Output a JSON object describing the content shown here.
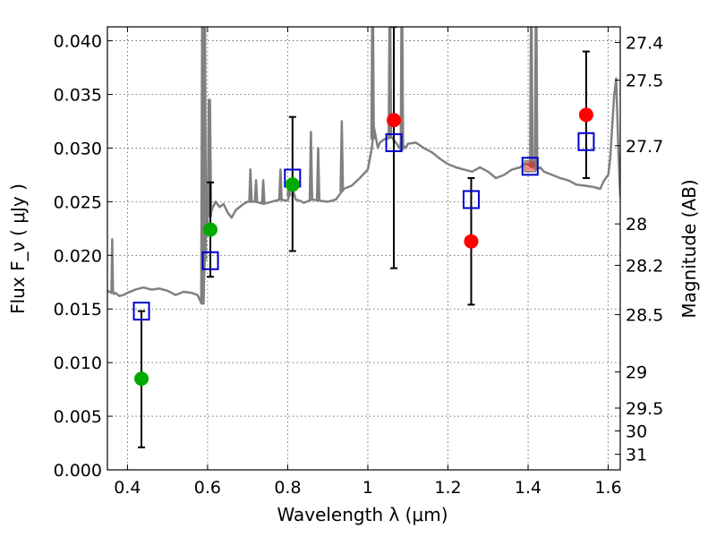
{
  "chart_data": {
    "type": "scatter",
    "xlabel": "Wavelength  λ (μm)",
    "ylabel": "Flux  F_ν  ( μJy )",
    "y2label": "Magnitude (AB)",
    "xlim": [
      0.35,
      1.63
    ],
    "ylim": [
      0.0,
      0.0413
    ],
    "grid": true,
    "x_ticks": [
      0.4,
      0.6,
      0.8,
      1.0,
      1.2,
      1.4,
      1.6
    ],
    "x_tick_labels": [
      "0.4",
      "0.6",
      "0.8",
      "1",
      "1.2",
      "1.4",
      "1.6"
    ],
    "y_ticks": [
      0.0,
      0.005,
      0.01,
      0.015,
      0.02,
      0.025,
      0.03,
      0.035,
      0.04
    ],
    "y_tick_labels": [
      "0.000",
      "0.005",
      "0.010",
      "0.015",
      "0.020",
      "0.025",
      "0.030",
      "0.035",
      "0.040"
    ],
    "y2_ticks": [
      {
        "label": "27.4",
        "flux": 0.03984
      },
      {
        "label": "27.5",
        "flux": 0.03633
      },
      {
        "label": "27.7",
        "flux": 0.03022
      },
      {
        "label": "28",
        "flux": 0.02293
      },
      {
        "label": "28.2",
        "flux": 0.01907
      },
      {
        "label": "28.5",
        "flux": 0.01447
      },
      {
        "label": "29",
        "flux": 0.00913
      },
      {
        "label": "29.5",
        "flux": 0.00576
      },
      {
        "label": "30",
        "flux": 0.00363
      },
      {
        "label": "31",
        "flux": 0.00145
      }
    ],
    "colors": {
      "spectrum": "#808080",
      "model_marker": "#0000cc",
      "model_inner": "#808080",
      "obs_red": "#ff0000",
      "obs_green": "#00aa00",
      "errorbar": "#000000",
      "grid": "#555555"
    },
    "spectrum": {
      "x": [
        0.35,
        0.36,
        0.362,
        0.364,
        0.366,
        0.37,
        0.38,
        0.39,
        0.4,
        0.42,
        0.44,
        0.46,
        0.48,
        0.5,
        0.52,
        0.54,
        0.56,
        0.575,
        0.585,
        0.59,
        0.592,
        0.596,
        0.6,
        0.603,
        0.606,
        0.609,
        0.612,
        0.62,
        0.63,
        0.64,
        0.65,
        0.66,
        0.67,
        0.68,
        0.69,
        0.7,
        0.72,
        0.74,
        0.76,
        0.78,
        0.8,
        0.81,
        0.82,
        0.83,
        0.84,
        0.86,
        0.88,
        0.9,
        0.92,
        0.94,
        0.96,
        0.98,
        1.0,
        1.01,
        1.015,
        1.02,
        1.025,
        1.03,
        1.04,
        1.05,
        1.06,
        1.07,
        1.08,
        1.085,
        1.09,
        1.095,
        1.1,
        1.12,
        1.14,
        1.16,
        1.18,
        1.2,
        1.22,
        1.24,
        1.26,
        1.28,
        1.3,
        1.32,
        1.34,
        1.36,
        1.38,
        1.39,
        1.4,
        1.41,
        1.415,
        1.42,
        1.43,
        1.44,
        1.46,
        1.48,
        1.5,
        1.52,
        1.54,
        1.56,
        1.58,
        1.59,
        1.6,
        1.605,
        1.61,
        1.615,
        1.62,
        1.625,
        1.63
      ],
      "y": [
        0.0167,
        0.0165,
        0.0215,
        0.0165,
        0.0164,
        0.0165,
        0.0162,
        0.0163,
        0.0165,
        0.0168,
        0.017,
        0.0168,
        0.0169,
        0.0167,
        0.0163,
        0.0166,
        0.0165,
        0.0163,
        0.0155,
        0.0155,
        0.0185,
        0.0225,
        0.0226,
        0.0345,
        0.0236,
        0.024,
        0.0244,
        0.025,
        0.0245,
        0.0248,
        0.024,
        0.0235,
        0.0242,
        0.0245,
        0.0248,
        0.025,
        0.025,
        0.0248,
        0.025,
        0.0252,
        0.0251,
        0.0265,
        0.0252,
        0.0251,
        0.0249,
        0.0252,
        0.0251,
        0.025,
        0.0252,
        0.0262,
        0.0265,
        0.0272,
        0.028,
        0.03,
        0.032,
        0.031,
        0.03,
        0.0305,
        0.0308,
        0.0309,
        0.031,
        0.0305,
        0.03,
        0.0298,
        0.0302,
        0.03,
        0.0304,
        0.0305,
        0.03,
        0.0296,
        0.029,
        0.0285,
        0.0282,
        0.028,
        0.0278,
        0.0282,
        0.0278,
        0.0272,
        0.0275,
        0.028,
        0.0282,
        0.0285,
        0.0285,
        0.0282,
        0.0285,
        0.028,
        0.0282,
        0.0278,
        0.0275,
        0.0272,
        0.027,
        0.0266,
        0.0265,
        0.0264,
        0.0262,
        0.027,
        0.0275,
        0.029,
        0.032,
        0.035,
        0.0365,
        0.03,
        0.0255
      ],
      "emission_lines": [
        {
          "x": 0.587,
          "peak": 0.048
        },
        {
          "x": 0.593,
          "peak": 0.048
        },
        {
          "x": 0.606,
          "peak": 0.0345
        },
        {
          "x": 0.707,
          "peak": 0.028
        },
        {
          "x": 0.721,
          "peak": 0.027
        },
        {
          "x": 0.739,
          "peak": 0.027
        },
        {
          "x": 0.782,
          "peak": 0.028
        },
        {
          "x": 0.803,
          "peak": 0.027
        },
        {
          "x": 0.858,
          "peak": 0.0315
        },
        {
          "x": 0.876,
          "peak": 0.03
        },
        {
          "x": 0.935,
          "peak": 0.0325
        },
        {
          "x": 1.012,
          "peak": 0.048
        },
        {
          "x": 1.055,
          "peak": 0.048
        },
        {
          "x": 1.085,
          "peak": 0.048
        },
        {
          "x": 1.408,
          "peak": 0.048
        },
        {
          "x": 1.42,
          "peak": 0.048
        }
      ]
    },
    "model_points": [
      {
        "x": 0.435,
        "y": 0.0148
      },
      {
        "x": 0.607,
        "y": 0.0195
      },
      {
        "x": 0.812,
        "y": 0.0272
      },
      {
        "x": 1.065,
        "y": 0.0305
      },
      {
        "x": 1.258,
        "y": 0.0252
      },
      {
        "x": 1.405,
        "y": 0.0283
      },
      {
        "x": 1.545,
        "y": 0.0306
      }
    ],
    "observed_points": [
      {
        "x": 0.435,
        "y": 0.0085,
        "err_low": 0.0021,
        "err_high": 0.0148,
        "color": "green"
      },
      {
        "x": 0.607,
        "y": 0.0224,
        "err_low": 0.018,
        "err_high": 0.0268,
        "color": "green"
      },
      {
        "x": 0.812,
        "y": 0.0266,
        "err_low": 0.0204,
        "err_high": 0.0329,
        "color": "green"
      },
      {
        "x": 1.065,
        "y": 0.0326,
        "err_low": 0.0188,
        "err_high": 0.0413,
        "color": "red"
      },
      {
        "x": 1.258,
        "y": 0.0213,
        "err_low": 0.0154,
        "err_high": 0.0272,
        "color": "red"
      },
      {
        "x": 1.405,
        "y": 0.0283,
        "err_low": null,
        "err_high": null,
        "color": "red"
      },
      {
        "x": 1.545,
        "y": 0.0331,
        "err_low": 0.0272,
        "err_high": 0.039,
        "color": "red"
      }
    ]
  }
}
